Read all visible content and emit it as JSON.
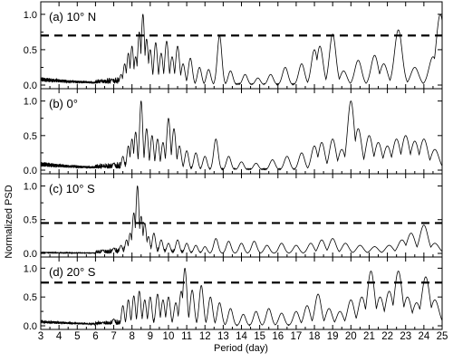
{
  "chart_data": {
    "type": "line",
    "xlabel": "Period (day)",
    "ylabel": "Normalized PSD",
    "xlim": [
      3,
      25
    ],
    "x_ticks": [
      "3",
      "4",
      "5",
      "6",
      "7",
      "8",
      "9",
      "10",
      "11",
      "12",
      "13",
      "14",
      "15",
      "16",
      "17",
      "18",
      "19",
      "20",
      "21",
      "22",
      "23",
      "24",
      "25"
    ],
    "y_ticks": [
      "0.0",
      "0.5",
      "1.0"
    ],
    "colors": {
      "line": "#000000",
      "axis": "#000000",
      "background": "#ffffff"
    },
    "panels": [
      {
        "label": "(a) 10° N",
        "ylim": [
          0,
          1.1
        ],
        "threshold": 0.7,
        "peaks": [
          [
            6.3,
            0.05
          ],
          [
            6.9,
            0.08
          ],
          [
            7.4,
            0.15
          ],
          [
            7.6,
            0.3
          ],
          [
            7.8,
            0.45
          ],
          [
            8.0,
            0.55
          ],
          [
            8.2,
            0.4
          ],
          [
            8.4,
            0.75
          ],
          [
            8.6,
            1.0
          ],
          [
            8.8,
            0.65
          ],
          [
            9.0,
            0.5
          ],
          [
            9.3,
            0.6
          ],
          [
            9.6,
            0.45
          ],
          [
            9.9,
            0.62
          ],
          [
            10.2,
            0.4
          ],
          [
            10.5,
            0.55
          ],
          [
            10.8,
            0.3
          ],
          [
            11.2,
            0.38
          ],
          [
            11.7,
            0.25
          ],
          [
            12.2,
            0.22
          ],
          [
            12.8,
            0.7
          ],
          [
            13.4,
            0.2
          ],
          [
            14.2,
            0.15
          ],
          [
            14.9,
            0.1
          ],
          [
            15.6,
            0.15
          ],
          [
            16.4,
            0.25
          ],
          [
            17.3,
            0.3
          ],
          [
            18.0,
            0.5
          ],
          [
            18.3,
            0.55
          ],
          [
            19.0,
            0.72
          ],
          [
            19.6,
            0.2
          ],
          [
            20.4,
            0.35
          ],
          [
            21.3,
            0.42
          ],
          [
            21.8,
            0.3
          ],
          [
            22.6,
            0.78
          ],
          [
            23.5,
            0.25
          ],
          [
            24.5,
            0.4
          ],
          [
            24.9,
            1.0
          ]
        ]
      },
      {
        "label": "(b) 0°",
        "ylim": [
          0,
          1.1
        ],
        "threshold": null,
        "peaks": [
          [
            6.4,
            0.05
          ],
          [
            7.0,
            0.1
          ],
          [
            7.5,
            0.2
          ],
          [
            7.8,
            0.35
          ],
          [
            8.0,
            0.45
          ],
          [
            8.2,
            0.55
          ],
          [
            8.5,
            1.0
          ],
          [
            8.8,
            0.6
          ],
          [
            9.1,
            0.5
          ],
          [
            9.4,
            0.45
          ],
          [
            9.7,
            0.4
          ],
          [
            10.0,
            0.75
          ],
          [
            10.3,
            0.6
          ],
          [
            10.6,
            0.35
          ],
          [
            11.0,
            0.28
          ],
          [
            11.5,
            0.25
          ],
          [
            12.0,
            0.2
          ],
          [
            12.6,
            0.45
          ],
          [
            13.3,
            0.2
          ],
          [
            14.0,
            0.12
          ],
          [
            14.8,
            0.1
          ],
          [
            15.7,
            0.15
          ],
          [
            16.5,
            0.2
          ],
          [
            17.3,
            0.25
          ],
          [
            18.0,
            0.35
          ],
          [
            18.4,
            0.4
          ],
          [
            19.0,
            0.45
          ],
          [
            19.5,
            0.3
          ],
          [
            20.0,
            1.0
          ],
          [
            20.4,
            0.6
          ],
          [
            21.0,
            0.5
          ],
          [
            21.5,
            0.4
          ],
          [
            22.0,
            0.35
          ],
          [
            22.5,
            0.45
          ],
          [
            23.0,
            0.5
          ],
          [
            23.5,
            0.42
          ],
          [
            24.0,
            0.45
          ],
          [
            24.6,
            0.3
          ]
        ]
      },
      {
        "label": "(c) 10° S",
        "ylim": [
          0,
          1.1
        ],
        "threshold": 0.45,
        "peaks": [
          [
            6.4,
            0.05
          ],
          [
            7.0,
            0.08
          ],
          [
            7.4,
            0.12
          ],
          [
            7.7,
            0.2
          ],
          [
            7.9,
            0.3
          ],
          [
            8.1,
            0.6
          ],
          [
            8.3,
            1.0
          ],
          [
            8.5,
            0.55
          ],
          [
            8.7,
            0.45
          ],
          [
            8.9,
            0.25
          ],
          [
            9.2,
            0.3
          ],
          [
            9.6,
            0.2
          ],
          [
            10.0,
            0.15
          ],
          [
            10.5,
            0.2
          ],
          [
            11.0,
            0.15
          ],
          [
            11.5,
            0.12
          ],
          [
            12.0,
            0.1
          ],
          [
            12.6,
            0.22
          ],
          [
            13.3,
            0.18
          ],
          [
            14.0,
            0.15
          ],
          [
            14.7,
            0.18
          ],
          [
            15.4,
            0.12
          ],
          [
            16.2,
            0.15
          ],
          [
            17.0,
            0.12
          ],
          [
            17.8,
            0.15
          ],
          [
            18.4,
            0.2
          ],
          [
            19.0,
            0.22
          ],
          [
            19.7,
            0.15
          ],
          [
            20.5,
            0.12
          ],
          [
            21.3,
            0.1
          ],
          [
            22.1,
            0.12
          ],
          [
            22.8,
            0.2
          ],
          [
            23.3,
            0.3
          ],
          [
            24.0,
            0.42
          ],
          [
            24.6,
            0.15
          ]
        ]
      },
      {
        "label": "(d) 20° S",
        "ylim": [
          0,
          1.1
        ],
        "threshold": 0.75,
        "peaks": [
          [
            6.4,
            0.06
          ],
          [
            7.0,
            0.12
          ],
          [
            7.5,
            0.35
          ],
          [
            7.8,
            0.45
          ],
          [
            8.1,
            0.52
          ],
          [
            8.4,
            0.6
          ],
          [
            8.7,
            0.45
          ],
          [
            9.0,
            0.5
          ],
          [
            9.4,
            0.55
          ],
          [
            9.7,
            0.45
          ],
          [
            10.0,
            0.5
          ],
          [
            10.4,
            0.4
          ],
          [
            10.7,
            0.6
          ],
          [
            10.9,
            1.0
          ],
          [
            11.3,
            0.62
          ],
          [
            11.8,
            0.7
          ],
          [
            12.3,
            0.5
          ],
          [
            12.8,
            0.4
          ],
          [
            13.4,
            0.3
          ],
          [
            14.1,
            0.2
          ],
          [
            14.8,
            0.25
          ],
          [
            15.5,
            0.3
          ],
          [
            16.2,
            0.22
          ],
          [
            17.0,
            0.25
          ],
          [
            17.6,
            0.35
          ],
          [
            18.2,
            0.55
          ],
          [
            18.8,
            0.3
          ],
          [
            19.4,
            0.25
          ],
          [
            20.0,
            0.45
          ],
          [
            20.6,
            0.5
          ],
          [
            21.1,
            0.95
          ],
          [
            21.6,
            0.5
          ],
          [
            22.1,
            0.6
          ],
          [
            22.6,
            0.95
          ],
          [
            23.1,
            0.5
          ],
          [
            23.6,
            0.4
          ],
          [
            24.1,
            0.85
          ],
          [
            24.6,
            0.45
          ]
        ]
      }
    ]
  }
}
